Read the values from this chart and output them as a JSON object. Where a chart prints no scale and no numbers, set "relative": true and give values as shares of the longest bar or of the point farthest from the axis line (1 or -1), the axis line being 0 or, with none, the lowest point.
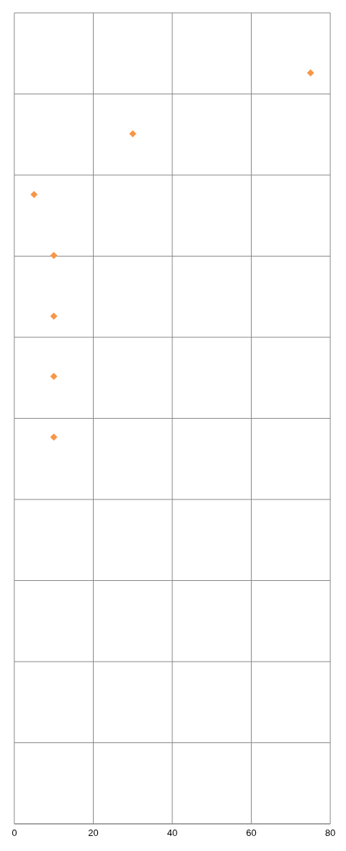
{
  "chart_data": {
    "type": "scatter",
    "relative": true,
    "x": [
      5,
      10,
      10,
      10,
      10,
      30,
      75
    ],
    "values": [
      0.838,
      0.757,
      0.676,
      0.596,
      0.515,
      0.919,
      1
    ],
    "color": "#f79646",
    "marker": "diamond",
    "xlim": [
      0,
      80
    ],
    "xticks": [
      0,
      20,
      40,
      60,
      80
    ],
    "grid": true
  }
}
